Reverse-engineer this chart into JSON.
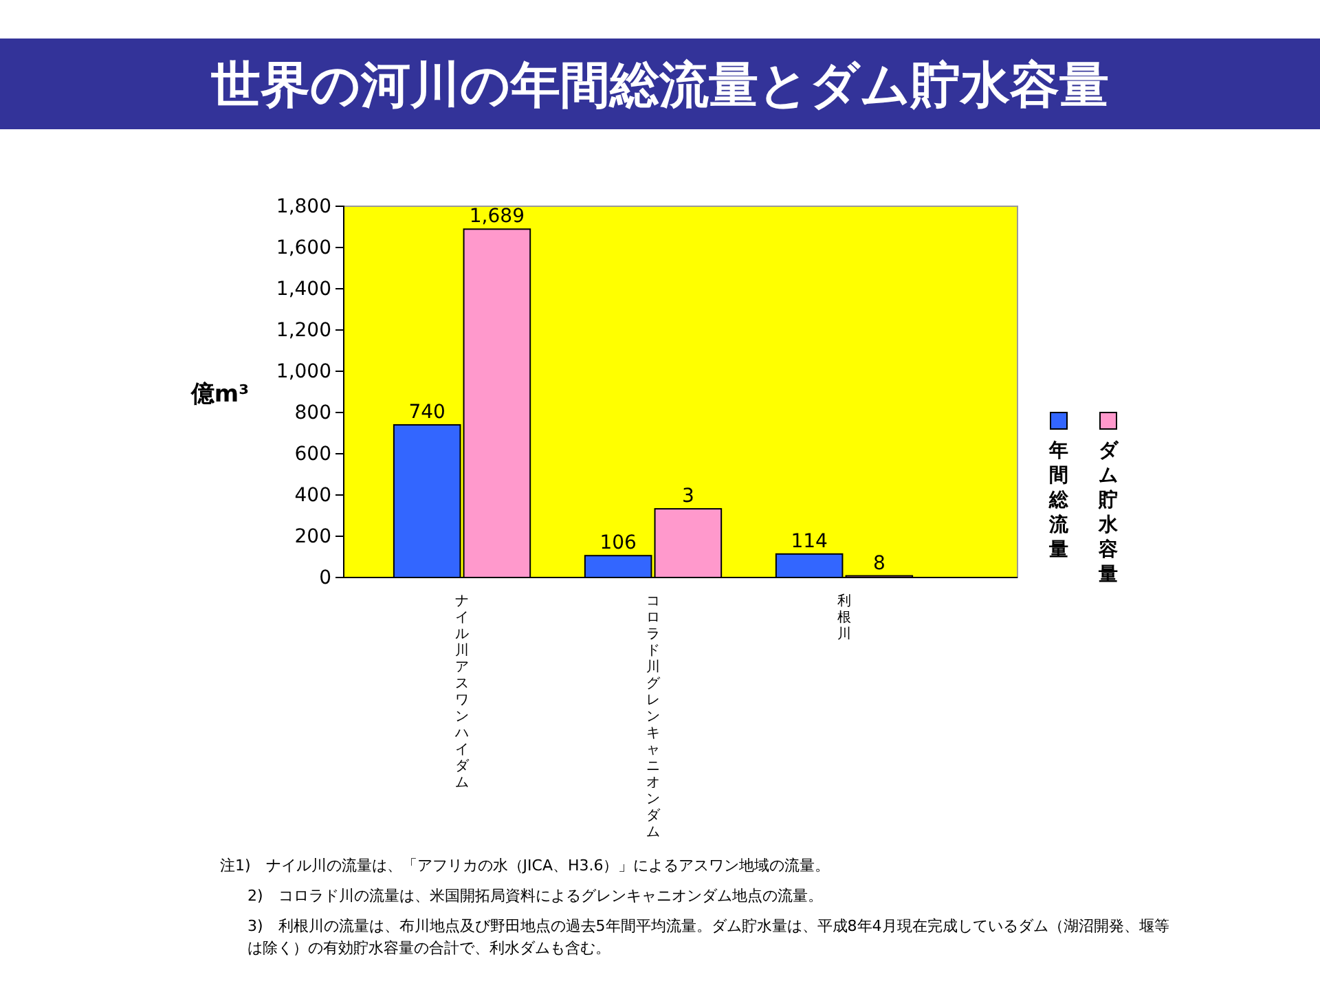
{
  "chart_data": {
    "type": "bar",
    "title": "世界の河川の年間総流量とダム貯水容量",
    "ylabel": "億m³",
    "categories": [
      "ナイル川アスワンハイダム",
      "コロラド川グレンキャニオンダム",
      "利根川"
    ],
    "series": [
      {
        "name": "年間総流量",
        "color": "#3366ff",
        "values": [
          740,
          106,
          114
        ],
        "value_labels": [
          "740",
          "106",
          "114"
        ]
      },
      {
        "name": "ダム貯水容量",
        "color": "#ff99cc",
        "values": [
          1689,
          333,
          8
        ],
        "value_labels": [
          "1,689",
          null,
          "8"
        ]
      }
    ],
    "ylim": [
      0,
      1800
    ],
    "yticks": [
      0,
      {
        "value": 200,
        "label": "200"
      },
      {
        "value": 400,
        "label": "400"
      },
      {
        "value": 600,
        "label": "600"
      },
      {
        "value": 800,
        "label": "800"
      },
      {
        "value": 1000,
        "label": "1,000"
      },
      {
        "value": 1200,
        "label": "1,200"
      },
      {
        "value": 1400,
        "label": "1,400"
      },
      {
        "value": 1600,
        "label": "1,600"
      },
      {
        "value": 1800,
        "label": "1,800"
      }
    ],
    "legend": "right",
    "annotations": [
      {
        "text": "3",
        "x": "コロラド川グレンキャニオンダム",
        "y": 333
      },
      "注1)　ナイル川の流量は、「アフリカの水（JICA、H3.6）」によるアスワン地域の流量。",
      "2)　コロラド川の流量は、米国開拓局資料によるグレンキャニオンダム地点の流量。",
      "3)　利根川の流量は、布川地点及び野田地点の過去5年間平均流量。ダム貯水量は、平成8年4月現在完成しているダム（湖沼開発、堰等は除く）の有効貯水容量の合計で、利水ダムも含む。"
    ]
  }
}
